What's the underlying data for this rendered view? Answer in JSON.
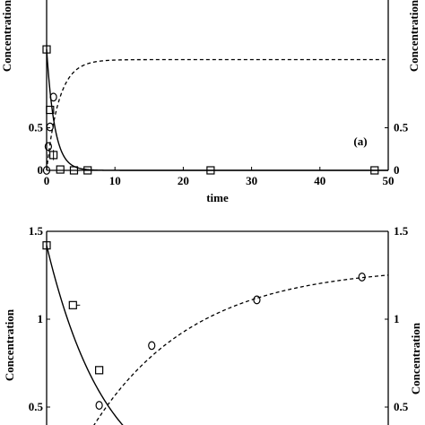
{
  "chart_data": [
    {
      "type": "scatter",
      "panel_label": "(a)",
      "xlabel": "time",
      "ylabel_left": "Concentration",
      "ylabel_right": "Concentration",
      "xlim": [
        0,
        50
      ],
      "ylim": [
        0,
        1.0
      ],
      "x_ticks": [
        "0",
        "10",
        "20",
        "30",
        "40",
        "50"
      ],
      "y_ticks_left": [
        "0",
        "0.5"
      ],
      "y_ticks_right": [
        "0",
        "0.5"
      ],
      "series": [
        {
          "marker": "square",
          "x": [
            0,
            0.5,
            1,
            2,
            4,
            6,
            24,
            48
          ],
          "y": [
            1.42,
            0.71,
            0.18,
            0.01,
            0.0,
            0.0,
            0.0,
            0.0
          ]
        },
        {
          "marker": "circle",
          "x": [
            0,
            0.25,
            0.5,
            1
          ],
          "y": [
            0.0,
            0.28,
            0.51,
            0.86
          ]
        }
      ]
    },
    {
      "type": "scatter",
      "ylabel_left": "Concentration",
      "ylabel_right": "Concentration",
      "xlim": [
        0,
        6.5
      ],
      "ylim": [
        0.4,
        1.5
      ],
      "y_ticks_left": [
        "1.5",
        "1",
        "0.5"
      ],
      "y_ticks_right": [
        "1.5",
        "1",
        "0.5"
      ],
      "series": [
        {
          "marker": "square",
          "x": [
            0,
            0.5,
            1
          ],
          "y": [
            1.42,
            1.08,
            0.71
          ]
        },
        {
          "marker": "circle",
          "x": [
            1,
            2,
            4,
            6
          ],
          "y": [
            0.51,
            0.85,
            1.11,
            1.24
          ]
        }
      ]
    }
  ]
}
